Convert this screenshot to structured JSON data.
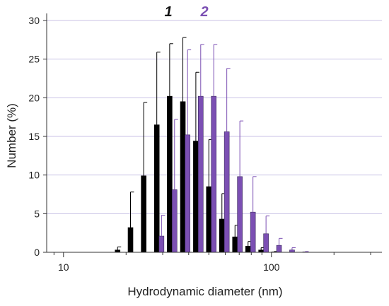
{
  "chart_data": {
    "type": "bar",
    "xscale": "log",
    "xlim": [
      8.3,
      340
    ],
    "ylim": [
      0,
      30
    ],
    "x_ticks": [
      10,
      100
    ],
    "x_tick_labels": [
      "10",
      "100"
    ],
    "y_ticks": [
      0,
      5,
      10,
      15,
      20,
      25,
      30
    ],
    "y_tick_labels": [
      "0",
      "5",
      "10",
      "15",
      "20",
      "25",
      "30"
    ],
    "xlabel": "Hydrodynamic diameter (nm)",
    "ylabel": "Number (%)",
    "grid": "horizontal",
    "legend_placement": "top-center",
    "colors": {
      "1": "#000000",
      "2": "#7b4fb3",
      "grid": "#c9c2e6",
      "axis": "#333333"
    },
    "series": [
      {
        "name": "1",
        "x": [
          18.2,
          21.0,
          24.3,
          28.1,
          32.4,
          37.5,
          43.3,
          50.0,
          57.8,
          66.8,
          77.2,
          89.2,
          103.0
        ],
        "values": [
          0.3,
          3.2,
          9.9,
          16.5,
          20.2,
          19.5,
          14.4,
          8.5,
          4.3,
          2.0,
          0.8,
          0.3,
          0.05
        ],
        "error": [
          0.4,
          4.6,
          9.5,
          9.4,
          6.8,
          8.3,
          8.9,
          6.1,
          3.3,
          1.5,
          0.6,
          0.3,
          0.05
        ]
      },
      {
        "name": "2",
        "x": [
          29.6,
          34.2,
          39.5,
          45.7,
          52.8,
          61.0,
          70.5,
          81.5,
          94.2,
          108.8,
          125.7,
          145.3
        ],
        "values": [
          2.1,
          8.1,
          15.2,
          20.2,
          20.2,
          15.6,
          9.8,
          5.2,
          2.4,
          0.9,
          0.3,
          0.05
        ],
        "error": [
          2.7,
          9.1,
          11.0,
          6.7,
          6.7,
          8.2,
          7.2,
          4.6,
          2.3,
          0.9,
          0.3,
          0.05
        ]
      }
    ]
  }
}
